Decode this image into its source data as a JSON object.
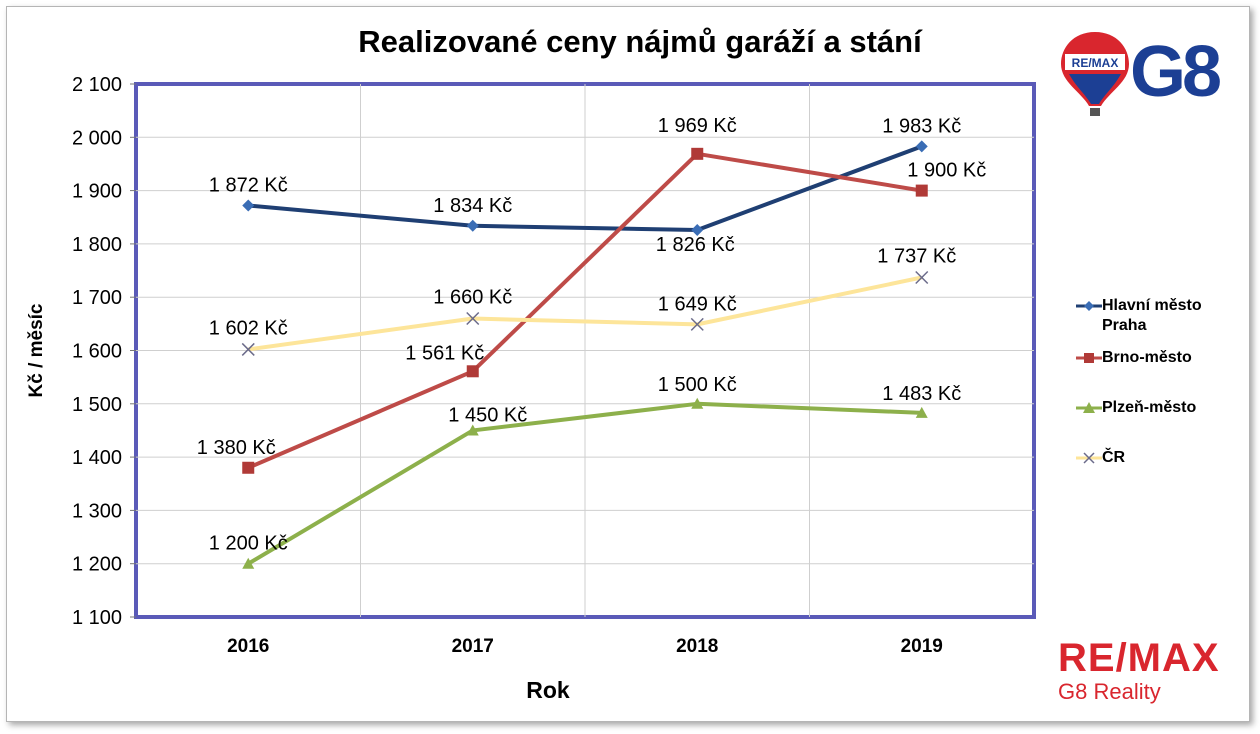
{
  "chart_data": {
    "type": "line",
    "title": "Realizované ceny nájmů garáží a stání",
    "xlabel": "Rok",
    "ylabel": "Kč / měsíc",
    "categories": [
      "2016",
      "2017",
      "2018",
      "2019"
    ],
    "ylim": [
      1100,
      2100
    ],
    "yticks": [
      "1 100",
      "1 200",
      "1 300",
      "1 400",
      "1 500",
      "1 600",
      "1 700",
      "1 800",
      "1 900",
      "2 000",
      "2 100"
    ],
    "grid": true,
    "legend_position": "right",
    "series": [
      {
        "name": "Hlavní město Praha",
        "values": [
          1872,
          1834,
          1826,
          1983
        ],
        "labels": [
          "1 872 Kč",
          "1 834 Kč",
          "1 826 Kč",
          "1 983 Kč"
        ],
        "color": "#1f3f73",
        "marker": "diamond"
      },
      {
        "name": "Brno-město",
        "values": [
          1380,
          1561,
          1969,
          1900
        ],
        "labels": [
          "1 380 Kč",
          "1 561 Kč",
          "1 969 Kč",
          "1 900 Kč"
        ],
        "color": "#be4b48",
        "marker": "square"
      },
      {
        "name": "Plzeň-město",
        "values": [
          1200,
          1450,
          1500,
          1483
        ],
        "labels": [
          "1 200 Kč",
          "1 450 Kč",
          "1 500 Kč",
          "1 483 Kč"
        ],
        "color": "#8db04b",
        "marker": "triangle"
      },
      {
        "name": "ČR",
        "values": [
          1602,
          1660,
          1649,
          1737
        ],
        "labels": [
          "1 602 Kč",
          "1 660 Kč",
          "1 649 Kč",
          "1 737 Kč"
        ],
        "color": "#fde59a",
        "marker": "x"
      }
    ]
  },
  "logos": {
    "top_balloon_text": "RE/MAX",
    "top_brand": "G8",
    "bottom_brand": "RE/MAX",
    "bottom_sub": "G8 Reality"
  }
}
